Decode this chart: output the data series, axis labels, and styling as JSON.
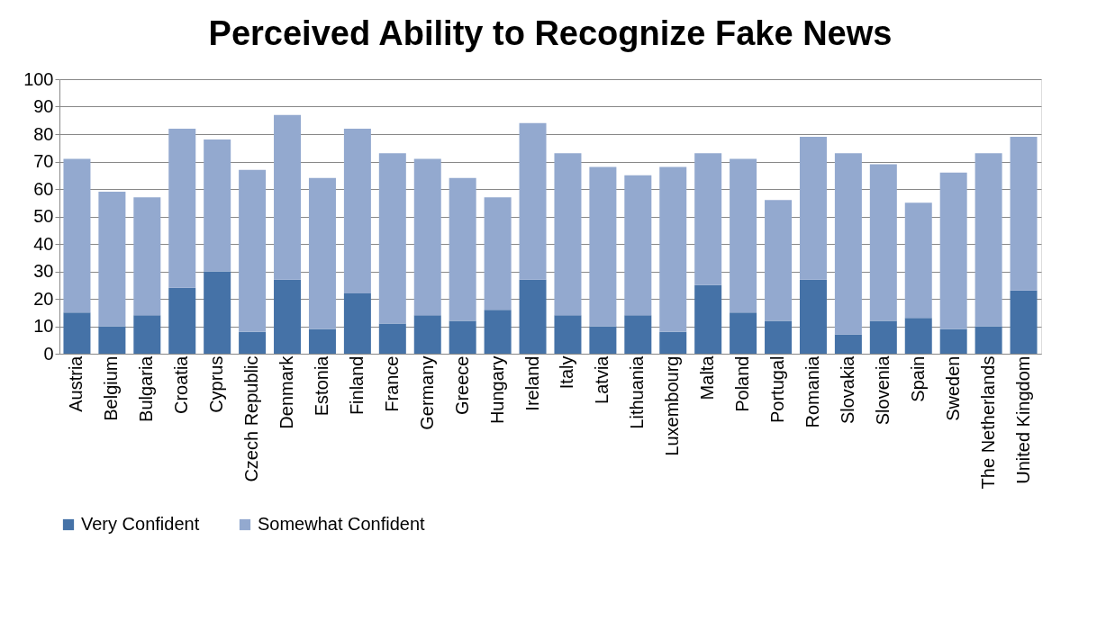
{
  "chart_data": {
    "type": "bar",
    "title": "Perceived Ability to Recognize Fake News",
    "stacked": true,
    "categories": [
      "Austria",
      "Belgium",
      "Bulgaria",
      "Croatia",
      "Cyprus",
      "Czech Republic",
      "Denmark",
      "Estonia",
      "Finland",
      "France",
      "Germany",
      "Greece",
      "Hungary",
      "Ireland",
      "Italy",
      "Latvia",
      "Lithuania",
      "Luxembourg",
      "Malta",
      "Poland",
      "Portugal",
      "Romania",
      "Slovakia",
      "Slovenia",
      "Spain",
      "Sweden",
      "The Netherlands",
      "United Kingdom"
    ],
    "series": [
      {
        "name": "Very Confident",
        "color": "#4572a7",
        "values": [
          15,
          10,
          14,
          24,
          30,
          8,
          27,
          9,
          22,
          11,
          14,
          12,
          16,
          27,
          14,
          10,
          14,
          8,
          25,
          15,
          12,
          27,
          7,
          12,
          13,
          9,
          10,
          23
        ]
      },
      {
        "name": "Somewhat Confident",
        "color": "#93a9cf",
        "values": [
          56,
          49,
          43,
          58,
          48,
          59,
          60,
          55,
          60,
          62,
          57,
          52,
          41,
          57,
          59,
          58,
          51,
          60,
          48,
          56,
          44,
          52,
          66,
          57,
          42,
          57,
          63,
          56
        ]
      }
    ],
    "ylim": [
      0,
      100
    ],
    "yticks": [
      0,
      10,
      20,
      30,
      40,
      50,
      60,
      70,
      80,
      90,
      100
    ],
    "grid": "y",
    "legend": "bottom"
  }
}
